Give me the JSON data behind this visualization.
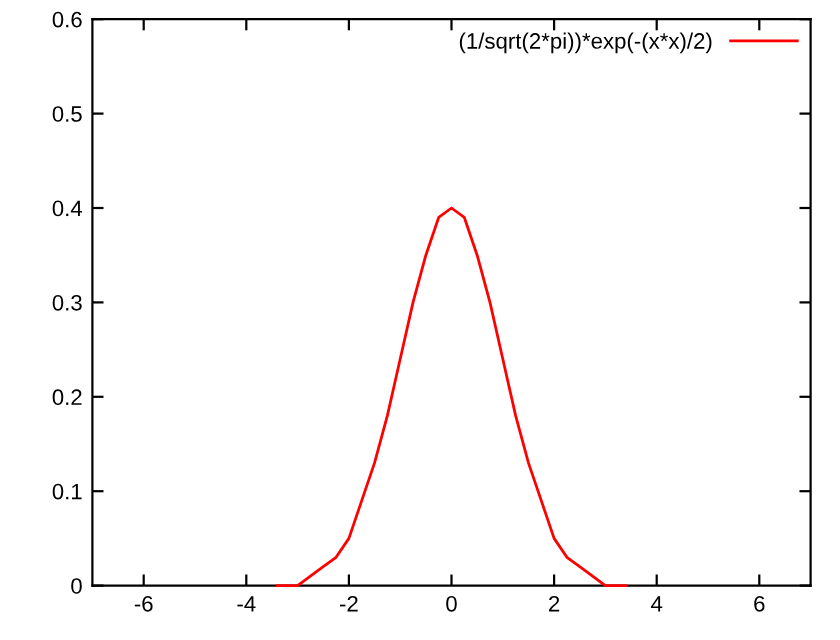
{
  "chart_data": {
    "type": "line",
    "x": [
      -3.4,
      -3,
      -2.75,
      -2.5,
      -2.25,
      -2,
      -1.75,
      -1.5,
      -1.25,
      -1,
      -0.75,
      -0.5,
      -0.25,
      0,
      0.25,
      0.5,
      0.75,
      1,
      1.25,
      1.5,
      1.75,
      2,
      2.25,
      2.5,
      2.75,
      3,
      3.4
    ],
    "series": [
      {
        "name": "(1/sqrt(2*pi))*exp(-(x*x)/2)",
        "color": "#ff0000",
        "values": [
          0.0,
          0.0,
          0.01,
          0.02,
          0.03,
          0.05,
          0.09,
          0.13,
          0.18,
          0.24,
          0.3,
          0.35,
          0.39,
          0.4,
          0.39,
          0.35,
          0.3,
          0.24,
          0.18,
          0.13,
          0.09,
          0.05,
          0.03,
          0.02,
          0.01,
          0.0,
          0.0
        ]
      }
    ],
    "xlim": [
      -7,
      7
    ],
    "ylim": [
      0,
      0.6
    ],
    "xticks": [
      -6,
      -4,
      -2,
      0,
      2,
      4,
      6
    ],
    "yticks": [
      0,
      0.1,
      0.2,
      0.3,
      0.4,
      0.5,
      0.6
    ],
    "legend": "top right",
    "grid": false,
    "marker": "none",
    "line_style": "solid"
  }
}
